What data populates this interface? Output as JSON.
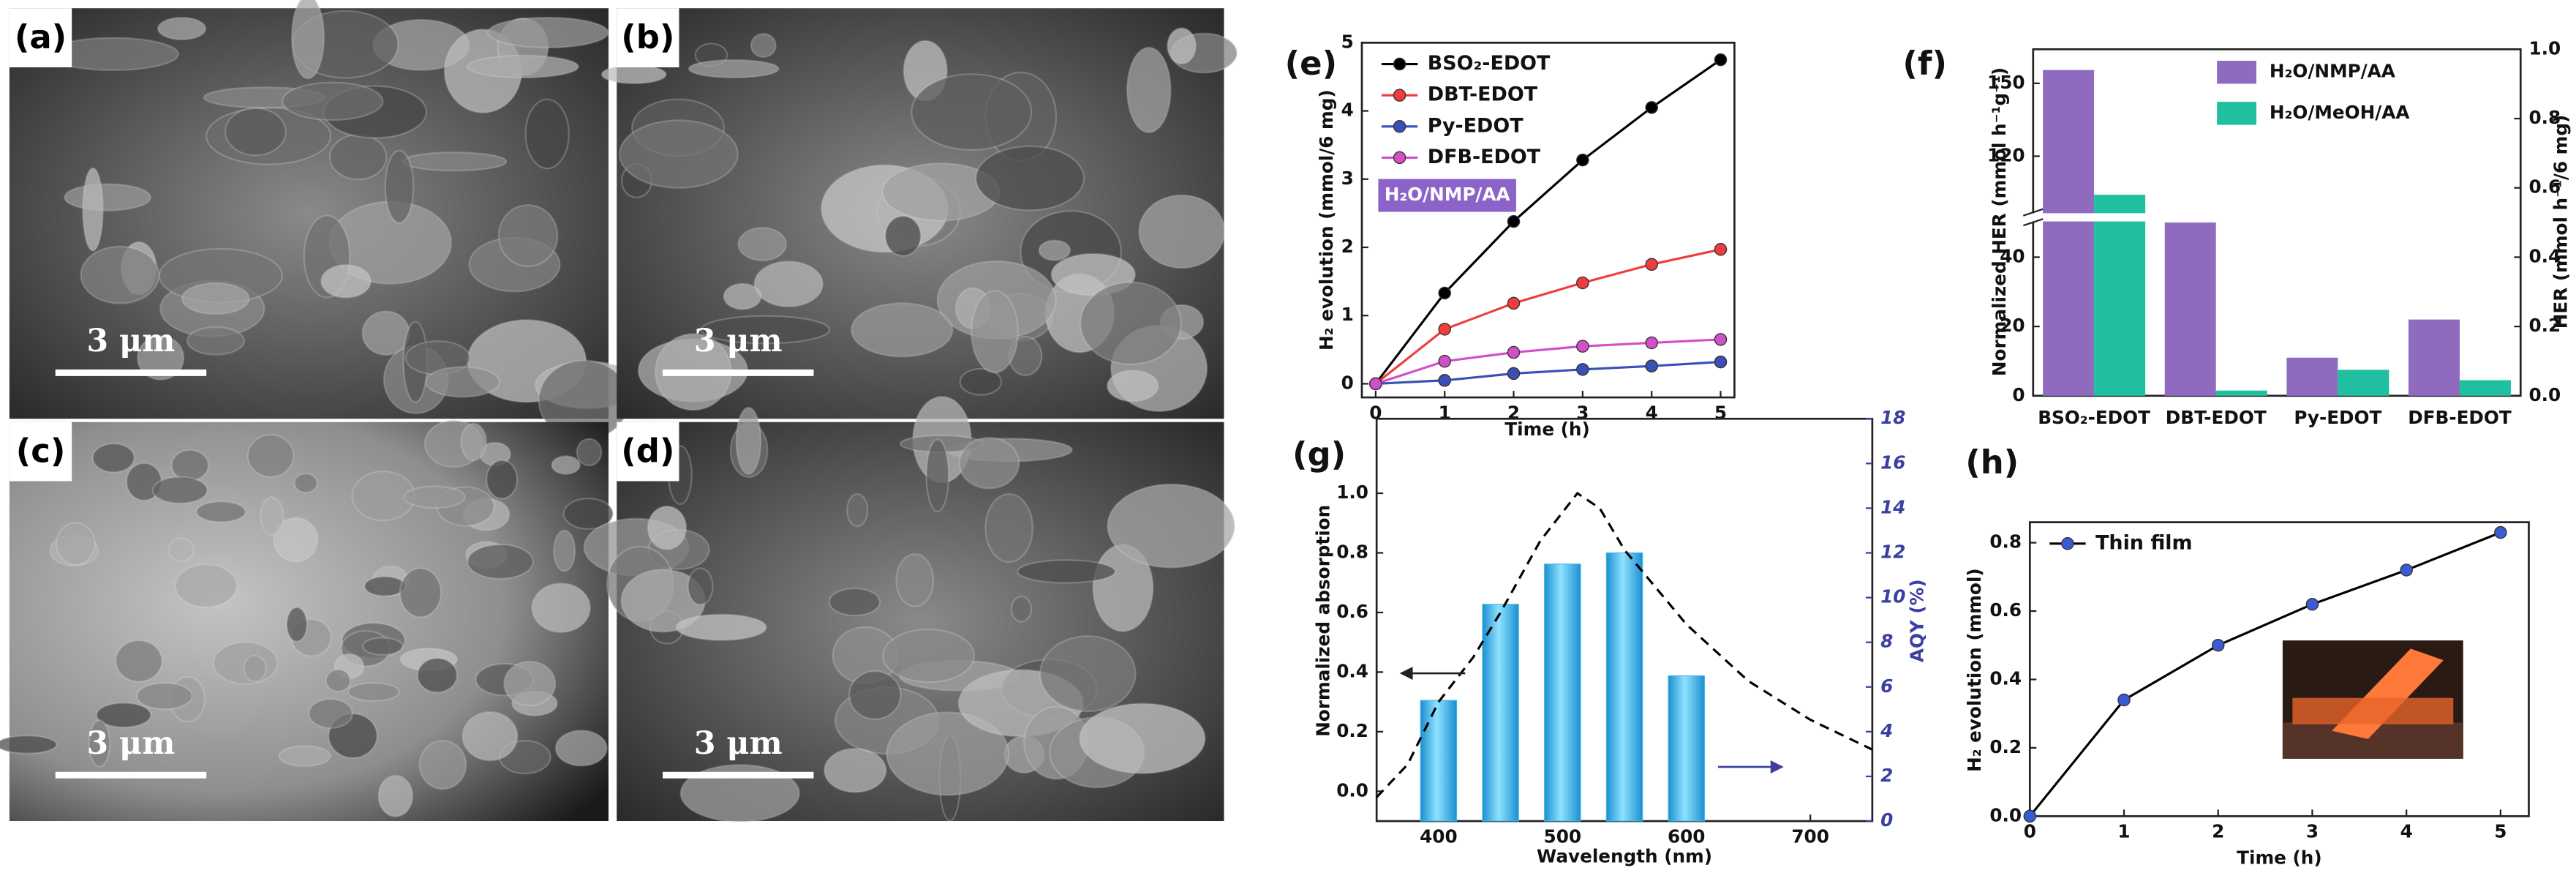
{
  "panels": [
    {
      "label": "(a)",
      "scale_bar": "3 μm"
    },
    {
      "label": "(b)",
      "scale_bar": "3 μm"
    },
    {
      "label": "(c)",
      "scale_bar": "3 μm"
    },
    {
      "label": "(d)",
      "scale_bar": "3 μm"
    }
  ],
  "chart_data": [
    {
      "type": "line",
      "label": "(e)",
      "x": [
        0,
        1,
        2,
        3,
        4,
        5
      ],
      "xlim": [
        -0.2,
        5.2
      ],
      "xticks": [
        0,
        1,
        2,
        3,
        4,
        5
      ],
      "ylim": [
        -0.2,
        5
      ],
      "yticks": [
        0,
        1,
        2,
        3,
        4,
        5
      ],
      "xlabel": "Time (h)",
      "ylabel": "H₂ evolution (mmol/6 mg)",
      "legend": "upper left",
      "annotation": "H₂O/NMP/AA",
      "annotation_color": "#8b63c9",
      "series": [
        {
          "name": "BSO₂-EDOT",
          "color": "#000000",
          "values": [
            0,
            1.33,
            2.38,
            3.28,
            4.05,
            4.75
          ]
        },
        {
          "name": "DBT-EDOT",
          "color": "#f03c3c",
          "values": [
            0,
            0.8,
            1.18,
            1.48,
            1.75,
            1.97
          ]
        },
        {
          "name": "Py-EDOT",
          "color": "#3a4fb8",
          "values": [
            0,
            0.05,
            0.15,
            0.21,
            0.26,
            0.32
          ]
        },
        {
          "name": "DFB-EDOT",
          "color": "#d050c8",
          "values": [
            0,
            0.33,
            0.46,
            0.55,
            0.6,
            0.65
          ]
        }
      ]
    },
    {
      "type": "bar",
      "label": "(f)",
      "categories": [
        "BSO₂-EDOT",
        "DBT-EDOT",
        "Py-EDOT",
        "DFB-EDOT"
      ],
      "ylim": [
        0,
        164
      ],
      "ybreak": [
        50,
        97
      ],
      "yticks": [
        0,
        20,
        40,
        120,
        150
      ],
      "y2lim": [
        0,
        1
      ],
      "y2ticks": [
        {
          "value": 0,
          "label": "0.0"
        },
        0.2,
        0.4,
        0.6,
        0.8,
        {
          "value": 1,
          "label": "1.0"
        }
      ],
      "ylabel": "Normalized HER (mmol h⁻¹g⁻¹)",
      "y2label": "HER (mmol h⁻¹/6 mg)",
      "legend": "upper right",
      "series": [
        {
          "name": "H₂O/NMP/AA",
          "color": "#8e6bbf",
          "axis": "y2",
          "values": [
            0.94,
            0.5,
            0.11,
            0.22
          ]
        },
        {
          "name": "H₂O/MeOH/AA",
          "color": "#1fbf9f",
          "axis": "y2",
          "values": [
            0.58,
            0.015,
            0.075,
            0.045
          ]
        }
      ]
    },
    {
      "type": "combo",
      "label": "(g)",
      "xlim": [
        350,
        750
      ],
      "xticks": [
        400,
        500,
        600,
        700
      ],
      "ylim": [
        -0.1,
        1.25
      ],
      "yticks": [
        {
          "value": 0,
          "label": "0.0"
        },
        0.2,
        0.4,
        0.6,
        0.8,
        {
          "value": 1,
          "label": "1.0"
        }
      ],
      "y2lim": [
        0,
        18
      ],
      "y2ticks": [
        0,
        2,
        4,
        6,
        8,
        10,
        12,
        14,
        16,
        18
      ],
      "xlabel": "Wavelength (nm)",
      "ylabel": "Normalized absorption",
      "y2label": "AQY (%)",
      "y2color": "#3a3fa0",
      "series": [
        {
          "type": "line",
          "dashed": true,
          "color": "#000000",
          "x": [
            350,
            375,
            400,
            428,
            450,
            482,
            512,
            530,
            550,
            600,
            650,
            700,
            750
          ],
          "values": [
            -0.02,
            0.09,
            0.3,
            0.45,
            0.6,
            0.84,
            1.0,
            0.95,
            0.81,
            0.56,
            0.37,
            0.24,
            0.14
          ]
        },
        {
          "type": "bar",
          "axis": "y2",
          "color": "#3fb6e8",
          "x": [
            400,
            450,
            500,
            550,
            600
          ],
          "values": [
            5.4,
            9.7,
            11.5,
            12.0,
            6.5
          ]
        }
      ]
    },
    {
      "type": "line",
      "label": "(h)",
      "x": [
        0,
        1,
        2,
        3,
        4,
        5
      ],
      "xlim": [
        0,
        5.3
      ],
      "xticks": [
        0,
        1,
        2,
        3,
        4,
        5
      ],
      "ylim": [
        0,
        0.86
      ],
      "yticks": [
        {
          "value": 0,
          "label": "0.0"
        },
        0.2,
        0.4,
        0.6,
        0.8
      ],
      "xlabel": "Time (h)",
      "ylabel": "H₂ evolution (mmol)",
      "legend": "upper left",
      "series": [
        {
          "name": "Thin film",
          "color": "#000000",
          "marker_color": "#3b5bd6",
          "values": [
            0,
            0.34,
            0.5,
            0.62,
            0.72,
            0.83
          ]
        }
      ]
    }
  ]
}
